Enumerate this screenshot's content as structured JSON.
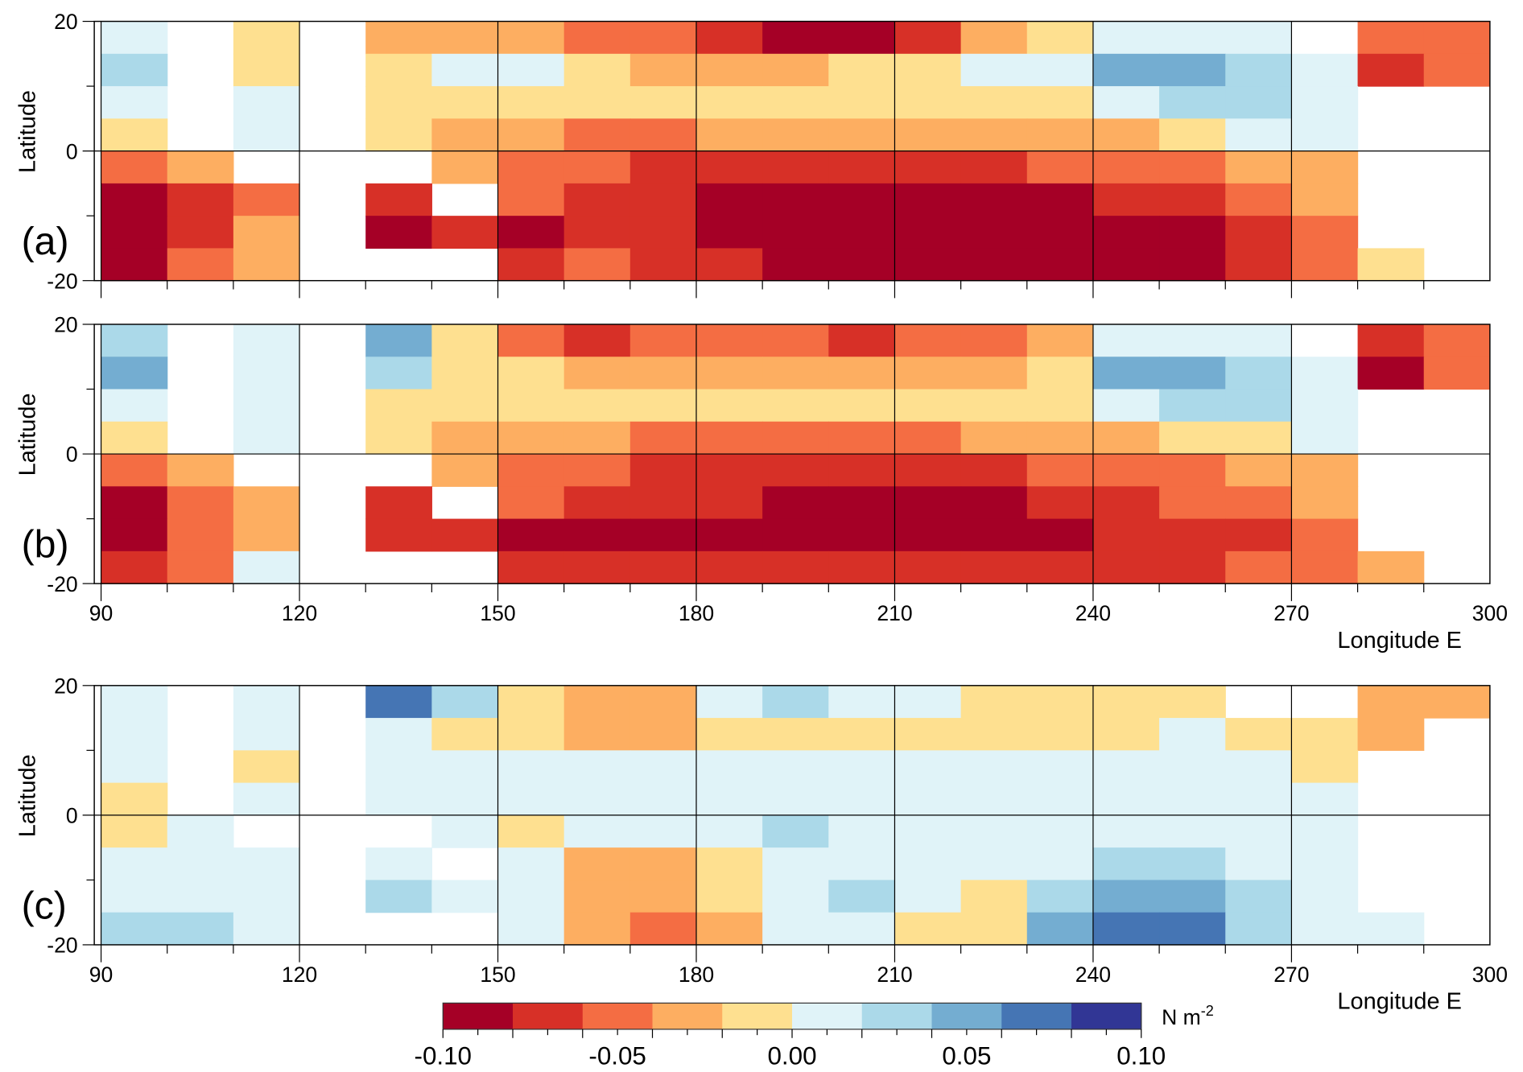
{
  "colorbar": {
    "unit": "N m",
    "unit_exp": "-2",
    "bounds": [
      -0.1,
      -0.08,
      -0.06,
      -0.04,
      -0.02,
      0.0,
      0.02,
      0.04,
      0.06,
      0.08,
      0.1
    ],
    "colors": [
      "#a50026",
      "#d73027",
      "#f46d43",
      "#fdae61",
      "#fee090",
      "#e0f3f8",
      "#abd9e9",
      "#74add1",
      "#4575b4",
      "#313695"
    ],
    "tick_labels": [
      "-0.10",
      "-0.05",
      "0.00",
      "0.05",
      "0.10"
    ],
    "tick_values": [
      -0.1,
      -0.05,
      0.0,
      0.05,
      0.1
    ]
  },
  "labels": {
    "ylabel": "Latitude",
    "xlabel": "Longitude E",
    "lat_ticks": [
      "20",
      "0",
      "-20"
    ],
    "lon_ticks": [
      "90",
      "120",
      "150",
      "180",
      "210",
      "240",
      "270",
      "300"
    ]
  },
  "chart_data": [
    {
      "type": "heatmap",
      "panel": "(a)",
      "xlabel": "",
      "ylabel": "Latitude",
      "xlim": [
        90,
        300
      ],
      "ylim": [
        -20,
        20
      ],
      "lons": [
        95,
        105,
        115,
        125,
        135,
        145,
        155,
        165,
        175,
        185,
        195,
        205,
        215,
        225,
        235,
        245,
        255,
        265,
        275,
        285,
        295
      ],
      "lats": [
        17.5,
        12.5,
        7.5,
        2.5,
        -2.5,
        -7.5,
        -12.5,
        -17.5
      ],
      "values": [
        [
          0.01,
          null,
          -0.01,
          null,
          -0.03,
          -0.03,
          -0.03,
          -0.05,
          -0.05,
          -0.07,
          -0.09,
          -0.09,
          -0.07,
          -0.03,
          -0.01,
          0.01,
          0.01,
          0.01,
          null,
          -0.05,
          -0.05
        ],
        [
          0.03,
          null,
          -0.01,
          null,
          -0.01,
          0.01,
          0.01,
          -0.01,
          -0.03,
          -0.03,
          -0.03,
          -0.01,
          -0.01,
          0.01,
          0.01,
          0.05,
          0.05,
          0.03,
          0.01,
          -0.07,
          -0.05
        ],
        [
          0.01,
          null,
          0.01,
          null,
          -0.01,
          -0.01,
          -0.01,
          -0.01,
          -0.01,
          -0.01,
          -0.01,
          -0.01,
          -0.01,
          -0.01,
          -0.01,
          0.01,
          0.03,
          0.03,
          0.01,
          null,
          null
        ],
        [
          -0.01,
          null,
          0.01,
          null,
          -0.01,
          -0.03,
          -0.03,
          -0.05,
          -0.05,
          -0.03,
          -0.03,
          -0.03,
          -0.03,
          -0.03,
          -0.03,
          -0.03,
          -0.01,
          0.01,
          0.01,
          null,
          null
        ],
        [
          -0.05,
          -0.03,
          null,
          null,
          null,
          -0.03,
          -0.05,
          -0.05,
          -0.07,
          -0.07,
          -0.07,
          -0.07,
          -0.07,
          -0.07,
          -0.05,
          -0.05,
          -0.05,
          -0.03,
          -0.03,
          null,
          null
        ],
        [
          -0.09,
          -0.07,
          -0.05,
          null,
          -0.07,
          null,
          -0.05,
          -0.07,
          -0.07,
          -0.09,
          -0.09,
          -0.09,
          -0.09,
          -0.09,
          -0.09,
          -0.07,
          -0.07,
          -0.05,
          -0.03,
          null,
          null
        ],
        [
          -0.09,
          -0.07,
          -0.03,
          null,
          -0.09,
          -0.07,
          -0.09,
          -0.07,
          -0.07,
          -0.09,
          -0.09,
          -0.09,
          -0.09,
          -0.09,
          -0.09,
          -0.09,
          -0.09,
          -0.07,
          -0.05,
          null,
          null
        ],
        [
          -0.09,
          -0.05,
          -0.03,
          null,
          null,
          null,
          -0.07,
          -0.05,
          -0.07,
          -0.07,
          -0.09,
          -0.09,
          -0.09,
          -0.09,
          -0.09,
          -0.09,
          -0.09,
          -0.07,
          -0.05,
          -0.01,
          null
        ]
      ]
    },
    {
      "type": "heatmap",
      "panel": "(b)",
      "xlabel": "Longitude E",
      "ylabel": "Latitude",
      "xlim": [
        90,
        300
      ],
      "ylim": [
        -20,
        20
      ],
      "lons": [
        95,
        105,
        115,
        125,
        135,
        145,
        155,
        165,
        175,
        185,
        195,
        205,
        215,
        225,
        235,
        245,
        255,
        265,
        275,
        285,
        295
      ],
      "lats": [
        17.5,
        12.5,
        7.5,
        2.5,
        -2.5,
        -7.5,
        -12.5,
        -17.5
      ],
      "values": [
        [
          0.03,
          null,
          0.01,
          null,
          0.05,
          -0.01,
          -0.05,
          -0.07,
          -0.05,
          -0.05,
          -0.05,
          -0.07,
          -0.05,
          -0.05,
          -0.03,
          0.01,
          0.01,
          0.01,
          null,
          -0.07,
          -0.05
        ],
        [
          0.05,
          null,
          0.01,
          null,
          0.03,
          -0.01,
          -0.01,
          -0.03,
          -0.03,
          -0.03,
          -0.03,
          -0.03,
          -0.03,
          -0.03,
          -0.01,
          0.05,
          0.05,
          0.03,
          0.01,
          -0.09,
          -0.05
        ],
        [
          0.01,
          null,
          0.01,
          null,
          -0.01,
          -0.01,
          -0.01,
          -0.01,
          -0.01,
          -0.01,
          -0.01,
          -0.01,
          -0.01,
          -0.01,
          -0.01,
          0.01,
          0.03,
          0.03,
          0.01,
          null,
          null
        ],
        [
          -0.01,
          null,
          0.01,
          null,
          -0.01,
          -0.03,
          -0.03,
          -0.03,
          -0.05,
          -0.05,
          -0.05,
          -0.05,
          -0.05,
          -0.03,
          -0.03,
          -0.03,
          -0.01,
          -0.01,
          0.01,
          null,
          null
        ],
        [
          -0.05,
          -0.03,
          null,
          null,
          null,
          -0.03,
          -0.05,
          -0.05,
          -0.07,
          -0.07,
          -0.07,
          -0.07,
          -0.07,
          -0.07,
          -0.05,
          -0.05,
          -0.05,
          -0.03,
          -0.03,
          null,
          null
        ],
        [
          -0.09,
          -0.05,
          -0.03,
          null,
          -0.07,
          null,
          -0.05,
          -0.07,
          -0.07,
          -0.07,
          -0.09,
          -0.09,
          -0.09,
          -0.09,
          -0.07,
          -0.07,
          -0.05,
          -0.05,
          -0.03,
          null,
          null
        ],
        [
          -0.09,
          -0.05,
          -0.03,
          null,
          -0.07,
          -0.07,
          -0.09,
          -0.09,
          -0.09,
          -0.09,
          -0.09,
          -0.09,
          -0.09,
          -0.09,
          -0.09,
          -0.07,
          -0.07,
          -0.07,
          -0.05,
          null,
          null
        ],
        [
          -0.07,
          -0.05,
          0.01,
          null,
          null,
          null,
          -0.07,
          -0.07,
          -0.07,
          -0.07,
          -0.07,
          -0.07,
          -0.07,
          -0.07,
          -0.07,
          -0.07,
          -0.07,
          -0.05,
          -0.05,
          -0.03,
          null
        ]
      ]
    },
    {
      "type": "heatmap",
      "panel": "(c)",
      "xlabel": "Longitude E",
      "ylabel": "Latitude",
      "xlim": [
        90,
        300
      ],
      "ylim": [
        -20,
        20
      ],
      "lons": [
        95,
        105,
        115,
        125,
        135,
        145,
        155,
        165,
        175,
        185,
        195,
        205,
        215,
        225,
        235,
        245,
        255,
        265,
        275,
        285,
        295
      ],
      "lats": [
        17.5,
        12.5,
        7.5,
        2.5,
        -2.5,
        -7.5,
        -12.5,
        -17.5
      ],
      "values": [
        [
          0.01,
          null,
          0.01,
          null,
          0.07,
          0.03,
          -0.01,
          -0.03,
          -0.03,
          0.01,
          0.03,
          0.01,
          0.01,
          -0.01,
          -0.01,
          -0.01,
          -0.01,
          null,
          null,
          -0.03,
          -0.03
        ],
        [
          0.01,
          null,
          0.01,
          null,
          0.01,
          -0.01,
          -0.01,
          -0.03,
          -0.03,
          -0.01,
          -0.01,
          -0.01,
          -0.01,
          -0.01,
          -0.01,
          -0.01,
          0.01,
          -0.01,
          -0.01,
          -0.03,
          null
        ],
        [
          0.01,
          null,
          -0.01,
          null,
          0.01,
          0.01,
          0.01,
          0.01,
          0.01,
          0.01,
          0.01,
          0.01,
          0.01,
          0.01,
          0.01,
          0.01,
          0.01,
          0.01,
          -0.01,
          null,
          null
        ],
        [
          -0.01,
          null,
          0.01,
          null,
          0.01,
          0.01,
          0.01,
          0.01,
          0.01,
          0.01,
          0.01,
          0.01,
          0.01,
          0.01,
          0.01,
          0.01,
          0.01,
          0.01,
          0.01,
          null,
          null
        ],
        [
          -0.01,
          0.01,
          null,
          null,
          null,
          0.01,
          -0.01,
          0.01,
          0.01,
          0.01,
          0.03,
          0.01,
          0.01,
          0.01,
          0.01,
          0.01,
          0.01,
          0.01,
          0.01,
          null,
          null
        ],
        [
          0.01,
          0.01,
          0.01,
          null,
          0.01,
          null,
          0.01,
          -0.03,
          -0.03,
          -0.01,
          0.01,
          0.01,
          0.01,
          0.01,
          0.01,
          0.03,
          0.03,
          0.01,
          0.01,
          null,
          null
        ],
        [
          0.01,
          0.01,
          0.01,
          null,
          0.03,
          0.01,
          0.01,
          -0.03,
          -0.03,
          -0.01,
          0.01,
          0.03,
          0.01,
          -0.01,
          0.03,
          0.05,
          0.05,
          0.03,
          0.01,
          null,
          null
        ],
        [
          0.03,
          0.03,
          0.01,
          null,
          null,
          null,
          0.01,
          -0.03,
          -0.05,
          -0.03,
          0.01,
          0.01,
          -0.01,
          -0.01,
          0.05,
          0.07,
          0.07,
          0.03,
          0.01,
          0.01,
          null
        ]
      ]
    }
  ]
}
